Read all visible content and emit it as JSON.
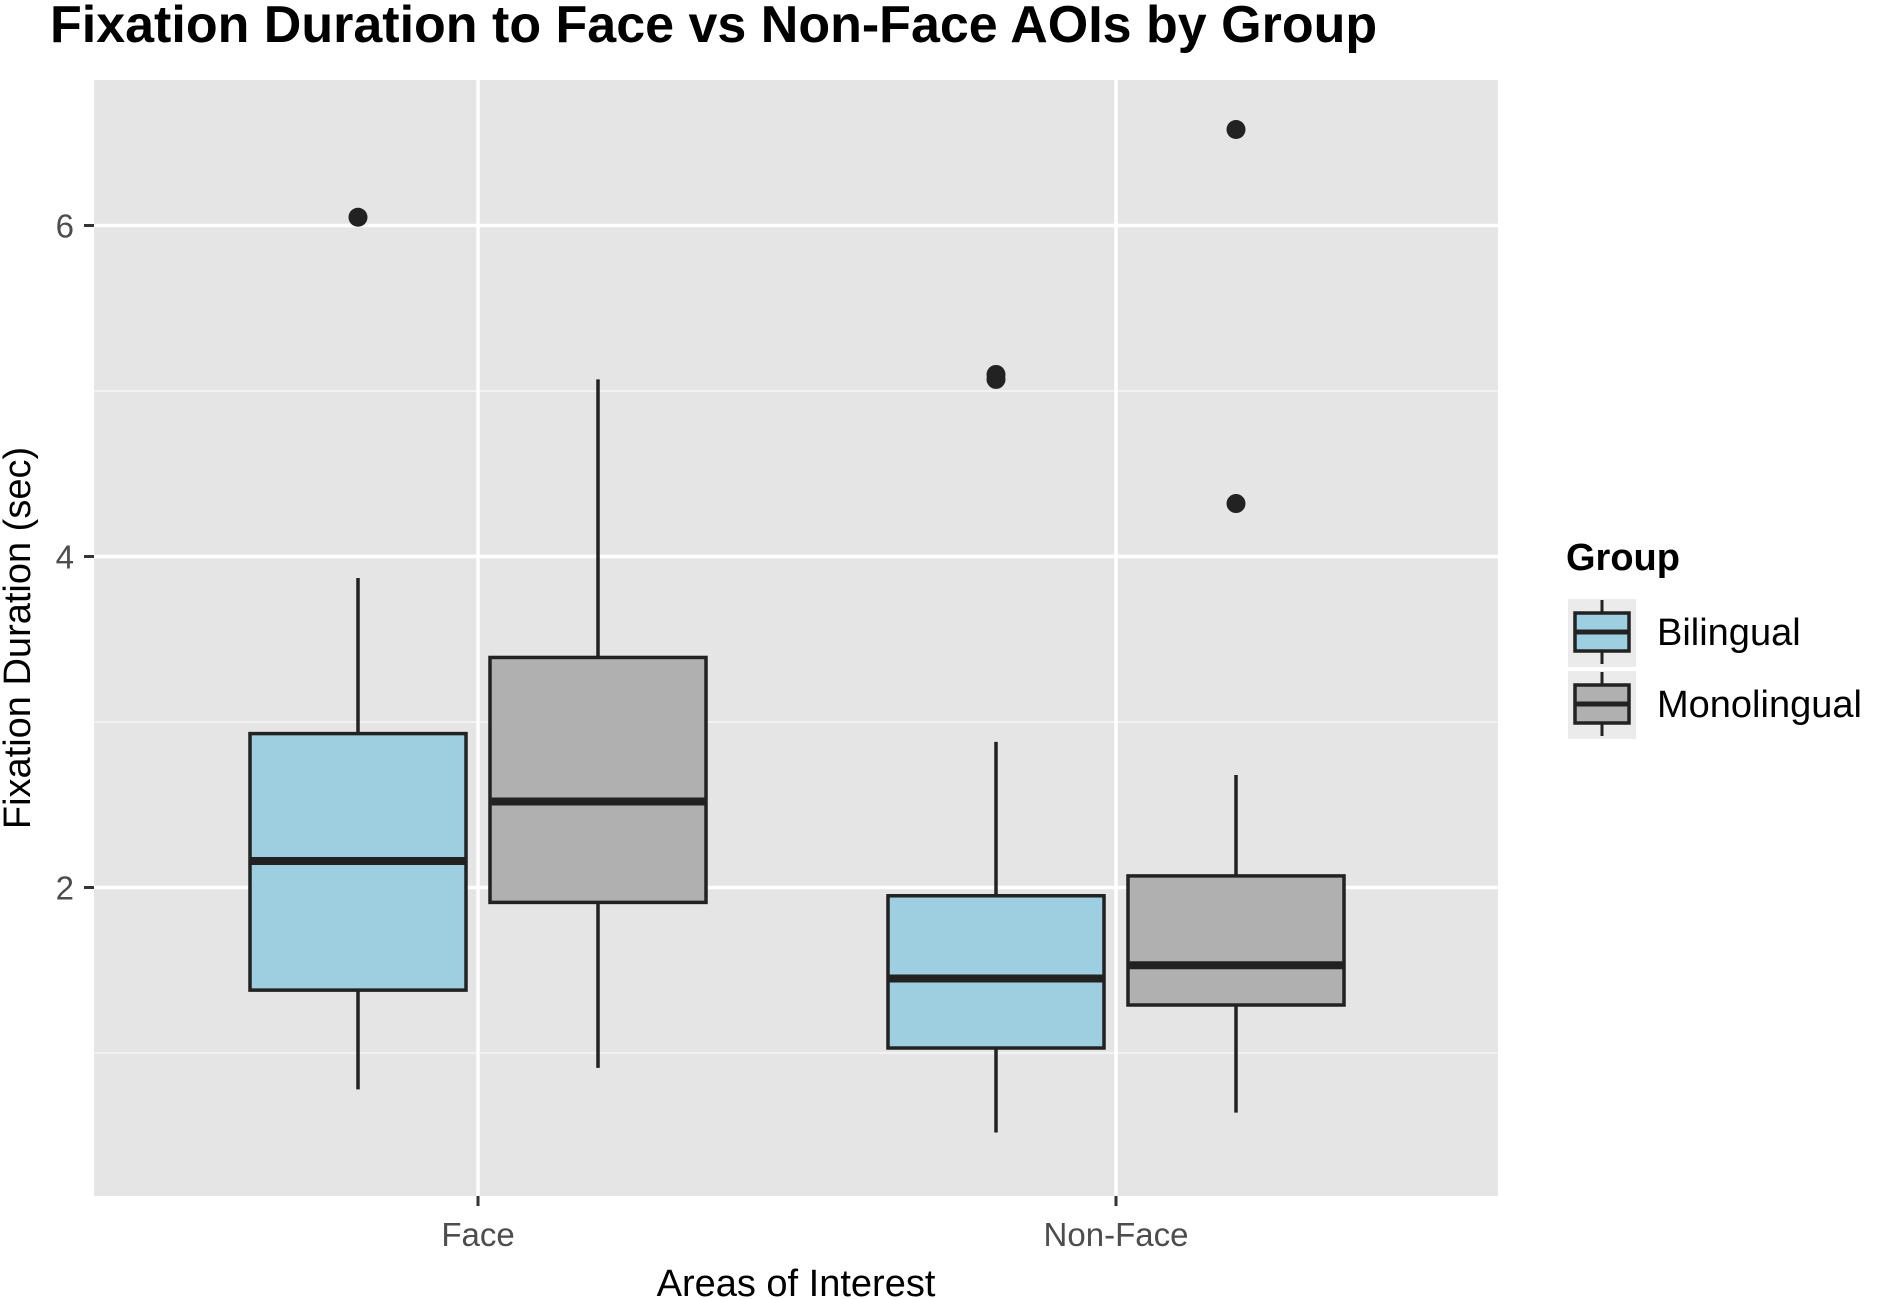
{
  "chart_data": {
    "type": "boxplot",
    "title": "Fixation Duration to Face vs Non-Face AOIs by Group",
    "xlabel": "Areas of Interest",
    "ylabel": "Fixation Duration (sec)",
    "categories": [
      "Face",
      "Non-Face"
    ],
    "y_ticks": [
      2,
      4,
      6
    ],
    "ylim": [
      0.25,
      6.85
    ],
    "grid": true,
    "background": "#e5e5e5",
    "legend": {
      "title": "Group",
      "position": "right",
      "entries": [
        "Bilingual",
        "Monolingual"
      ]
    },
    "series": [
      {
        "name": "Bilingual",
        "color": "#9ecfe0",
        "boxes": [
          {
            "category": "Face",
            "whisker_low": 0.78,
            "q1": 1.38,
            "median": 2.16,
            "q3": 2.93,
            "whisker_high": 3.87,
            "outliers": [
              6.05
            ]
          },
          {
            "category": "Non-Face",
            "whisker_low": 0.52,
            "q1": 1.03,
            "median": 1.45,
            "q3": 1.95,
            "whisker_high": 2.88,
            "outliers": [
              5.07,
              5.1
            ]
          }
        ]
      },
      {
        "name": "Monolingual",
        "color": "#b0b0b0",
        "boxes": [
          {
            "category": "Face",
            "whisker_low": 0.91,
            "q1": 1.91,
            "median": 2.52,
            "q3": 3.39,
            "whisker_high": 5.07,
            "outliers": []
          },
          {
            "category": "Non-Face",
            "whisker_low": 0.64,
            "q1": 1.29,
            "median": 1.53,
            "q3": 2.07,
            "whisker_high": 2.68,
            "outliers": [
              4.32,
              6.58
            ]
          }
        ]
      }
    ]
  }
}
